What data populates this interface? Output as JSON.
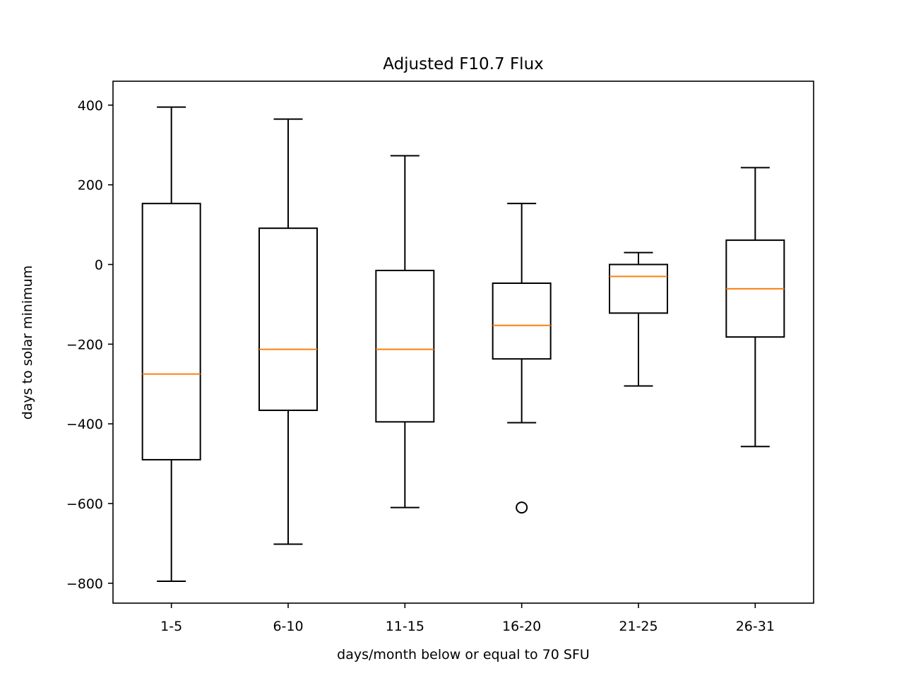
{
  "chart_data": {
    "type": "box",
    "title": "Adjusted F10.7 Flux",
    "xlabel": "days/month below or equal to 70 SFU",
    "ylabel": "days to solar minimum",
    "categories": [
      "1-5",
      "6-10",
      "11-15",
      "16-20",
      "21-25",
      "26-31"
    ],
    "ylim": [
      -850,
      460
    ],
    "yticks": [
      400,
      200,
      0,
      -200,
      -400,
      -600,
      -800
    ],
    "ytick_labels": [
      "400",
      "200",
      "0",
      "−200",
      "−400",
      "−600",
      "−800"
    ],
    "boxes": [
      {
        "label": "1-5",
        "whisker_low": -795,
        "q1": -490,
        "median": -275,
        "q3": 153,
        "whisker_high": 395,
        "outliers": []
      },
      {
        "label": "6-10",
        "whisker_low": -702,
        "q1": -366,
        "median": -213,
        "q3": 91,
        "whisker_high": 365,
        "outliers": []
      },
      {
        "label": "11-15",
        "whisker_low": -610,
        "q1": -395,
        "median": -213,
        "q3": -15,
        "whisker_high": 273,
        "outliers": []
      },
      {
        "label": "16-20",
        "whisker_low": -397,
        "q1": -237,
        "median": -153,
        "q3": -47,
        "whisker_high": 153,
        "outliers": [
          -610
        ]
      },
      {
        "label": "21-25",
        "whisker_low": -305,
        "q1": -122,
        "median": -30,
        "q3": 0,
        "whisker_high": 30,
        "outliers": []
      },
      {
        "label": "26-31",
        "whisker_low": -457,
        "q1": -182,
        "median": -61,
        "q3": 61,
        "whisker_high": 243,
        "outliers": []
      }
    ],
    "grid": false,
    "legend": "none",
    "colors": {
      "box": "#000000",
      "median": "#ff7f0e",
      "outlier": "#000000"
    }
  }
}
